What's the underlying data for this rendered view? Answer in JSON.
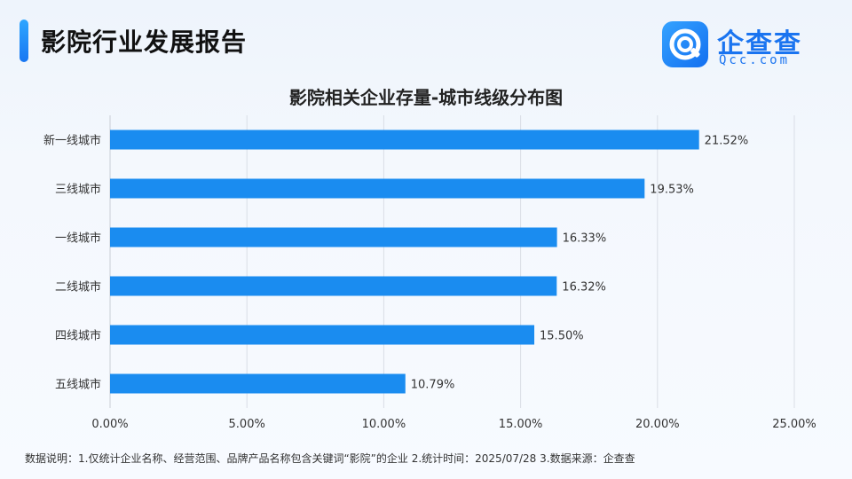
{
  "header": {
    "title": "影院行业发展报告"
  },
  "logo": {
    "name": "企查查",
    "domain": "Qcc.com"
  },
  "footnote": "数据说明：1.仅统计企业名称、经营范围、品牌产品名称包含关键词“影院”的企业  2.统计时间：2025/07/28  3.数据来源：企查查",
  "colors": {
    "bar": "#1a8cf0",
    "accent": "#1a74f0",
    "grid": "#d9dee6"
  },
  "chart_data": {
    "type": "bar",
    "orientation": "horizontal",
    "title": "影院相关企业存量-城市线级分布图",
    "categories": [
      "新一线城市",
      "三线城市",
      "一线城市",
      "二线城市",
      "四线城市",
      "五线城市"
    ],
    "values": [
      21.52,
      19.53,
      16.33,
      16.32,
      15.5,
      10.79
    ],
    "value_labels": [
      "21.52%",
      "19.53%",
      "16.33%",
      "16.32%",
      "15.50%",
      "10.79%"
    ],
    "x_ticks": [
      "0.00%",
      "5.00%",
      "10.00%",
      "15.00%",
      "20.00%",
      "25.00%"
    ],
    "xlim": [
      0,
      25
    ],
    "grid": true,
    "legend": "none"
  }
}
